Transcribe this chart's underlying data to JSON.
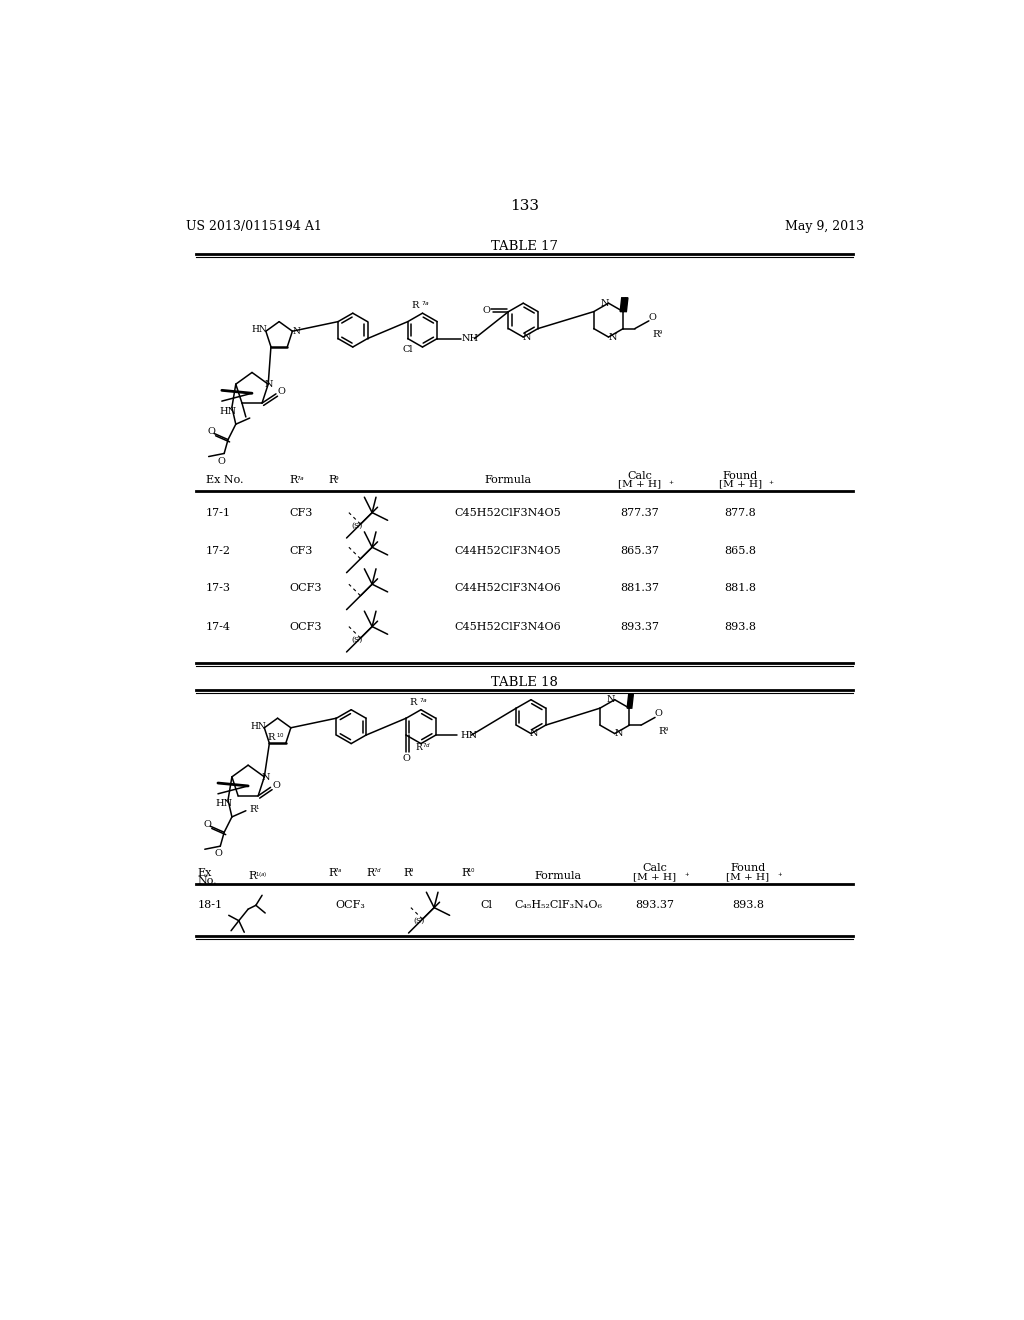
{
  "page_number": "133",
  "header_left": "US 2013/0115194 A1",
  "header_right": "May 9, 2013",
  "background_color": "#ffffff",
  "table17_title": "TABLE 17",
  "table18_title": "TABLE 18",
  "t17_rows": [
    {
      "ex": "17-1",
      "r7a": "CF3",
      "has_S": true,
      "formula": "C45H52ClF3N4O5",
      "calc": "877.37",
      "found": "877.8"
    },
    {
      "ex": "17-2",
      "r7a": "CF3",
      "has_S": false,
      "formula": "C44H52ClF3N4O5",
      "calc": "865.37",
      "found": "865.8"
    },
    {
      "ex": "17-3",
      "r7a": "OCF3",
      "has_S": false,
      "formula": "C44H52ClF3N4O6",
      "calc": "881.37",
      "found": "881.8"
    },
    {
      "ex": "17-4",
      "r7a": "OCF3",
      "has_S": true,
      "formula": "C45H52ClF3N4O6",
      "calc": "893.37",
      "found": "893.8"
    }
  ],
  "t18_rows": [
    {
      "ex": "18-1",
      "r7a": "OCF3",
      "r10": "Cl",
      "formula": "C45H52ClF3N4O6",
      "calc": "893.37",
      "found": "893.8"
    }
  ]
}
